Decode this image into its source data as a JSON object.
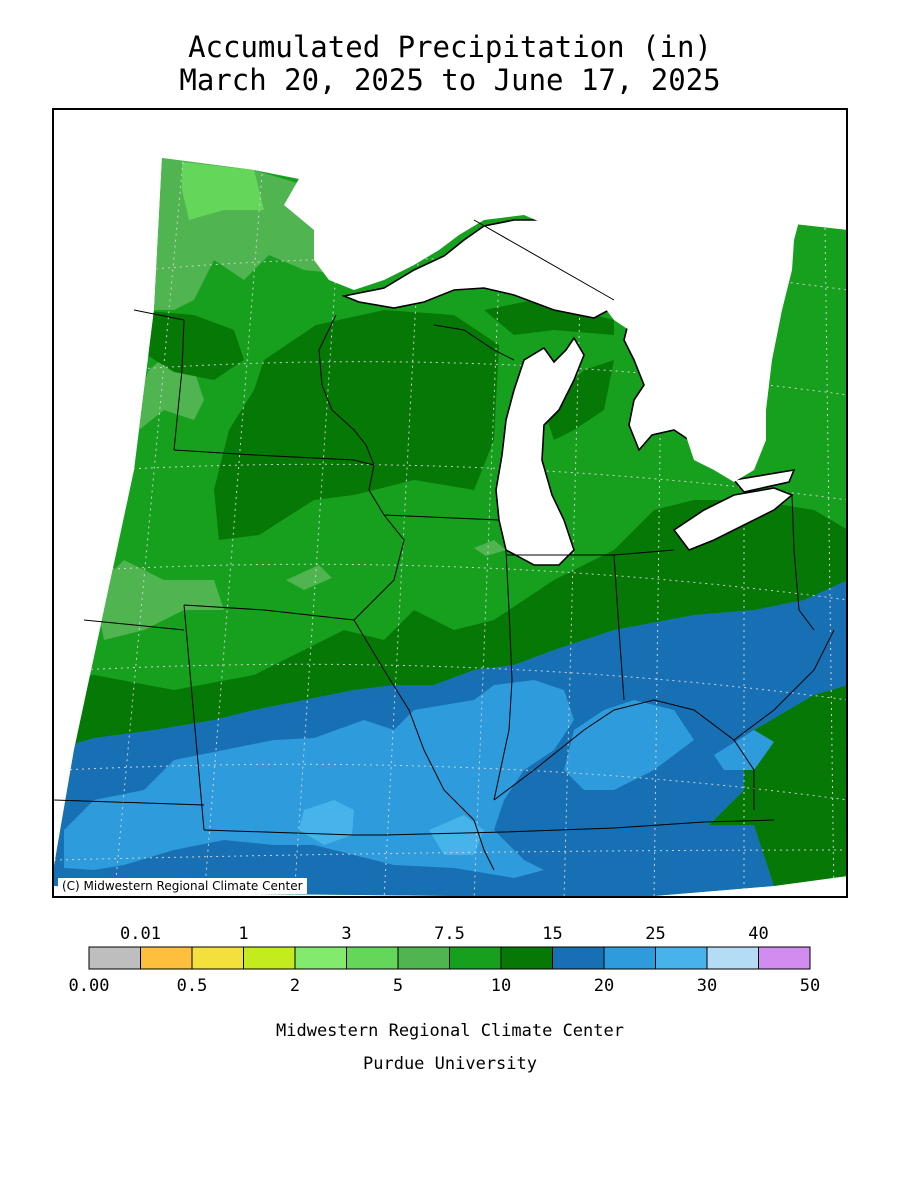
{
  "title": {
    "line1": "Accumulated Precipitation (in)",
    "line2": "March 20, 2025 to June 17, 2025"
  },
  "map": {
    "copyright": "(C) Midwestern Regional Climate Center",
    "lake_color": "#ffffff",
    "border_color": "#000000"
  },
  "legend": {
    "top_labels": [
      "0.01",
      "1",
      "3",
      "7.5",
      "15",
      "25",
      "40"
    ],
    "bottom_labels": [
      "0.00",
      "0.5",
      "2",
      "5",
      "10",
      "20",
      "30",
      "50"
    ],
    "colors": [
      "#bebebe",
      "#fdbf3c",
      "#f3e03c",
      "#c3eb1e",
      "#82eb6e",
      "#64d75a",
      "#50b450",
      "#16a01e",
      "#057805",
      "#1770b4",
      "#2d9bdc",
      "#46b4eb",
      "#b4dcf5",
      "#d28cf0"
    ]
  },
  "credits": {
    "line1": "Midwestern Regional Climate Center",
    "line2": "Purdue University"
  }
}
